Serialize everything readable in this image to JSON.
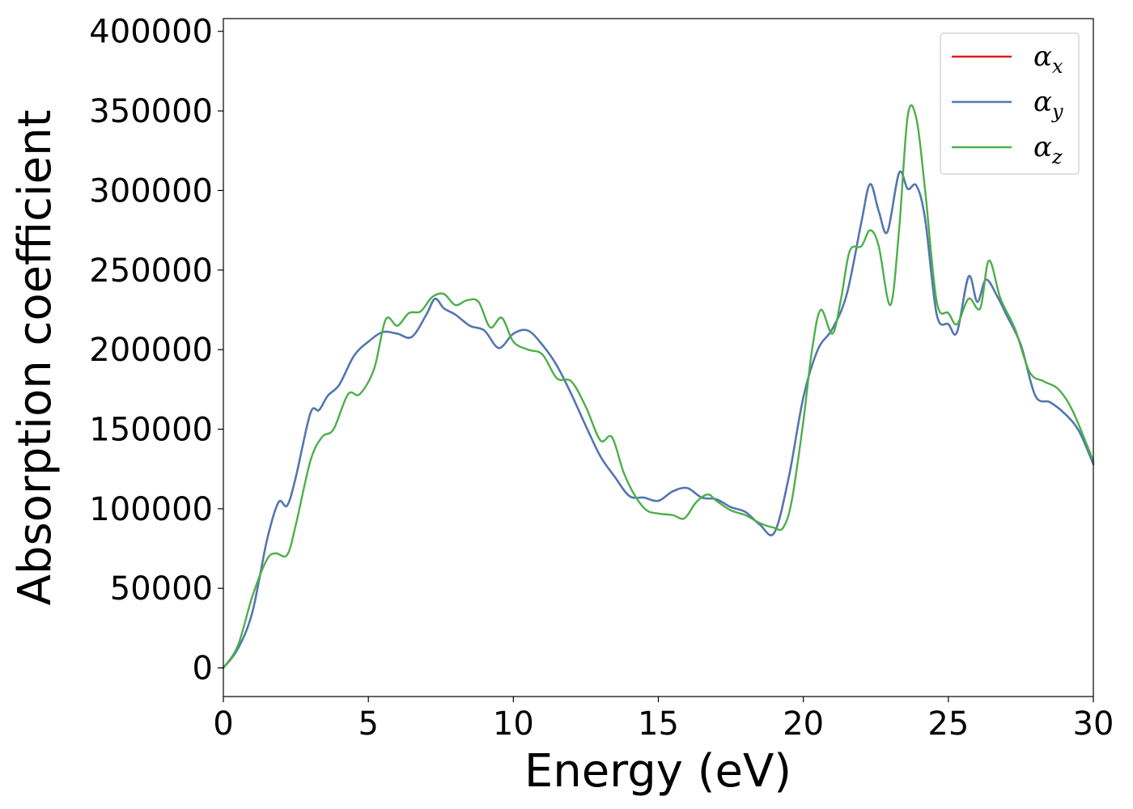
{
  "chart_data": {
    "type": "line",
    "title": "",
    "xlabel": "Energy (eV)",
    "ylabel": "Absorption coefficient",
    "xlim": [
      0,
      30
    ],
    "ylim": [
      -18000,
      408000
    ],
    "xticks": [
      0,
      5,
      10,
      15,
      20,
      25,
      30
    ],
    "yticks": [
      0,
      50000,
      100000,
      150000,
      200000,
      250000,
      300000,
      350000,
      400000
    ],
    "grid": false,
    "legend_position": "top-right",
    "series": [
      {
        "name": "α",
        "subscript": "x",
        "color": "#e41a1c",
        "points": [
          [
            0,
            0
          ],
          [
            0.5,
            12000
          ],
          [
            1,
            35000
          ],
          [
            1.5,
            80000
          ],
          [
            1.9,
            104000
          ],
          [
            2.2,
            102000
          ],
          [
            2.5,
            120000
          ],
          [
            3,
            160000
          ],
          [
            3.3,
            162000
          ],
          [
            3.6,
            171000
          ],
          [
            4,
            178000
          ],
          [
            4.5,
            196000
          ],
          [
            5,
            205000
          ],
          [
            5.5,
            211000
          ],
          [
            6,
            210000
          ],
          [
            6.5,
            208000
          ],
          [
            7,
            222000
          ],
          [
            7.3,
            232000
          ],
          [
            7.6,
            226000
          ],
          [
            8,
            222000
          ],
          [
            8.5,
            215000
          ],
          [
            9,
            212000
          ],
          [
            9.5,
            201000
          ],
          [
            10,
            210000
          ],
          [
            10.5,
            212000
          ],
          [
            11,
            203000
          ],
          [
            11.5,
            190000
          ],
          [
            12,
            172000
          ],
          [
            12.5,
            152000
          ],
          [
            13,
            133000
          ],
          [
            13.5,
            120000
          ],
          [
            14,
            108000
          ],
          [
            14.5,
            107000
          ],
          [
            15,
            105000
          ],
          [
            15.5,
            111000
          ],
          [
            16,
            113000
          ],
          [
            16.5,
            107000
          ],
          [
            17,
            106000
          ],
          [
            17.5,
            101000
          ],
          [
            18,
            98000
          ],
          [
            18.5,
            90000
          ],
          [
            19,
            85000
          ],
          [
            19.5,
            120000
          ],
          [
            20,
            170000
          ],
          [
            20.5,
            200000
          ],
          [
            21,
            213000
          ],
          [
            21.5,
            235000
          ],
          [
            22,
            280000
          ],
          [
            22.3,
            304000
          ],
          [
            22.6,
            287000
          ],
          [
            22.9,
            274000
          ],
          [
            23.3,
            311000
          ],
          [
            23.6,
            301000
          ],
          [
            23.9,
            303000
          ],
          [
            24.2,
            282000
          ],
          [
            24.6,
            222000
          ],
          [
            25,
            216000
          ],
          [
            25.3,
            211000
          ],
          [
            25.7,
            246000
          ],
          [
            26,
            230000
          ],
          [
            26.3,
            244000
          ],
          [
            26.7,
            233000
          ],
          [
            27,
            222000
          ],
          [
            27.5,
            203000
          ],
          [
            28,
            171000
          ],
          [
            28.5,
            167000
          ],
          [
            29,
            160000
          ],
          [
            29.5,
            149000
          ],
          [
            30,
            128000
          ]
        ]
      },
      {
        "name": "α",
        "subscript": "y",
        "color": "#4a7ab8",
        "points": [
          [
            0,
            0
          ],
          [
            0.5,
            12000
          ],
          [
            1,
            35000
          ],
          [
            1.5,
            80000
          ],
          [
            1.9,
            104000
          ],
          [
            2.2,
            102000
          ],
          [
            2.5,
            120000
          ],
          [
            3,
            160000
          ],
          [
            3.3,
            162000
          ],
          [
            3.6,
            171000
          ],
          [
            4,
            178000
          ],
          [
            4.5,
            196000
          ],
          [
            5,
            205000
          ],
          [
            5.5,
            211000
          ],
          [
            6,
            210000
          ],
          [
            6.5,
            208000
          ],
          [
            7,
            222000
          ],
          [
            7.3,
            232000
          ],
          [
            7.6,
            226000
          ],
          [
            8,
            222000
          ],
          [
            8.5,
            215000
          ],
          [
            9,
            212000
          ],
          [
            9.5,
            201000
          ],
          [
            10,
            210000
          ],
          [
            10.5,
            212000
          ],
          [
            11,
            203000
          ],
          [
            11.5,
            190000
          ],
          [
            12,
            172000
          ],
          [
            12.5,
            152000
          ],
          [
            13,
            133000
          ],
          [
            13.5,
            120000
          ],
          [
            14,
            108000
          ],
          [
            14.5,
            107000
          ],
          [
            15,
            105000
          ],
          [
            15.5,
            111000
          ],
          [
            16,
            113000
          ],
          [
            16.5,
            107000
          ],
          [
            17,
            106000
          ],
          [
            17.5,
            101000
          ],
          [
            18,
            98000
          ],
          [
            18.5,
            90000
          ],
          [
            19,
            85000
          ],
          [
            19.5,
            120000
          ],
          [
            20,
            170000
          ],
          [
            20.5,
            200000
          ],
          [
            21,
            213000
          ],
          [
            21.5,
            235000
          ],
          [
            22,
            280000
          ],
          [
            22.3,
            304000
          ],
          [
            22.6,
            287000
          ],
          [
            22.9,
            274000
          ],
          [
            23.3,
            311000
          ],
          [
            23.6,
            301000
          ],
          [
            23.9,
            303000
          ],
          [
            24.2,
            282000
          ],
          [
            24.6,
            222000
          ],
          [
            25,
            216000
          ],
          [
            25.3,
            211000
          ],
          [
            25.7,
            246000
          ],
          [
            26,
            230000
          ],
          [
            26.3,
            244000
          ],
          [
            26.7,
            233000
          ],
          [
            27,
            222000
          ],
          [
            27.5,
            203000
          ],
          [
            28,
            171000
          ],
          [
            28.5,
            167000
          ],
          [
            29,
            160000
          ],
          [
            29.5,
            149000
          ],
          [
            30,
            128000
          ]
        ]
      },
      {
        "name": "α",
        "subscript": "z",
        "color": "#4daf4a",
        "points": [
          [
            0,
            0
          ],
          [
            0.5,
            14000
          ],
          [
            1,
            45000
          ],
          [
            1.5,
            68000
          ],
          [
            1.8,
            72000
          ],
          [
            2.2,
            71000
          ],
          [
            2.5,
            90000
          ],
          [
            3,
            130000
          ],
          [
            3.4,
            145000
          ],
          [
            3.8,
            150000
          ],
          [
            4.3,
            172000
          ],
          [
            4.7,
            172000
          ],
          [
            5.2,
            188000
          ],
          [
            5.6,
            219000
          ],
          [
            6,
            215000
          ],
          [
            6.4,
            223000
          ],
          [
            6.8,
            224000
          ],
          [
            7.2,
            233000
          ],
          [
            7.6,
            235000
          ],
          [
            8,
            228000
          ],
          [
            8.4,
            231000
          ],
          [
            8.8,
            230000
          ],
          [
            9.2,
            214000
          ],
          [
            9.6,
            220000
          ],
          [
            10,
            205000
          ],
          [
            10.5,
            200000
          ],
          [
            11,
            197000
          ],
          [
            11.5,
            182000
          ],
          [
            12,
            180000
          ],
          [
            12.5,
            164000
          ],
          [
            13,
            143000
          ],
          [
            13.4,
            145000
          ],
          [
            13.8,
            123000
          ],
          [
            14.2,
            108000
          ],
          [
            14.6,
            99000
          ],
          [
            15,
            97000
          ],
          [
            15.5,
            96000
          ],
          [
            15.9,
            94000
          ],
          [
            16.3,
            104000
          ],
          [
            16.7,
            109000
          ],
          [
            17,
            105000
          ],
          [
            17.5,
            99000
          ],
          [
            18,
            96000
          ],
          [
            18.5,
            91000
          ],
          [
            19,
            88000
          ],
          [
            19.3,
            88000
          ],
          [
            19.6,
            105000
          ],
          [
            20,
            155000
          ],
          [
            20.3,
            200000
          ],
          [
            20.6,
            225000
          ],
          [
            21,
            210000
          ],
          [
            21.3,
            232000
          ],
          [
            21.6,
            262000
          ],
          [
            22,
            265000
          ],
          [
            22.3,
            275000
          ],
          [
            22.6,
            265000
          ],
          [
            23,
            228000
          ],
          [
            23.3,
            275000
          ],
          [
            23.6,
            347000
          ],
          [
            23.9,
            345000
          ],
          [
            24.2,
            300000
          ],
          [
            24.6,
            230000
          ],
          [
            25,
            223000
          ],
          [
            25.3,
            216000
          ],
          [
            25.7,
            232000
          ],
          [
            26.1,
            226000
          ],
          [
            26.4,
            256000
          ],
          [
            26.8,
            232000
          ],
          [
            27.3,
            213000
          ],
          [
            27.8,
            186000
          ],
          [
            28.3,
            180000
          ],
          [
            28.8,
            175000
          ],
          [
            29.3,
            161000
          ],
          [
            30,
            130000
          ]
        ]
      }
    ]
  }
}
